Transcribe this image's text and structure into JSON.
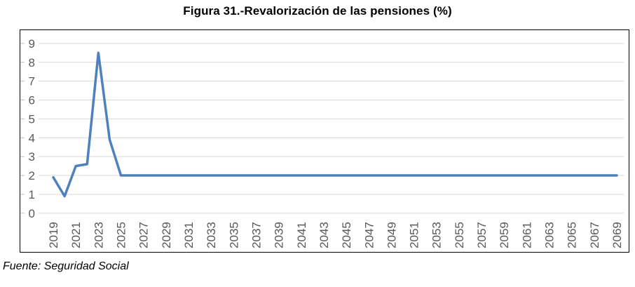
{
  "page": {
    "title": "Figura 31.-Revalorización de las pensiones (%)",
    "source_note": "Fuente: Seguridad Social"
  },
  "chart_data": {
    "type": "line",
    "title": "Figura 31.-Revalorización de las pensiones (%)",
    "source_note": "Fuente: Seguridad Social",
    "x": [
      2019,
      2020,
      2021,
      2022,
      2023,
      2024,
      2025,
      2026,
      2027,
      2028,
      2029,
      2030,
      2031,
      2032,
      2033,
      2034,
      2035,
      2036,
      2037,
      2038,
      2039,
      2040,
      2041,
      2042,
      2043,
      2044,
      2045,
      2046,
      2047,
      2048,
      2049,
      2050,
      2051,
      2052,
      2053,
      2054,
      2055,
      2056,
      2057,
      2058,
      2059,
      2060,
      2061,
      2062,
      2063,
      2064,
      2065,
      2066,
      2067,
      2068,
      2069
    ],
    "series": [
      {
        "name": "Revalorización de las pensiones (%)",
        "values": [
          1.9,
          0.9,
          2.5,
          2.6,
          8.5,
          3.9,
          2,
          2,
          2,
          2,
          2,
          2,
          2,
          2,
          2,
          2,
          2,
          2,
          2,
          2,
          2,
          2,
          2,
          2,
          2,
          2,
          2,
          2,
          2,
          2,
          2,
          2,
          2,
          2,
          2,
          2,
          2,
          2,
          2,
          2,
          2,
          2,
          2,
          2,
          2,
          2,
          2,
          2,
          2,
          2,
          2
        ]
      }
    ],
    "xlabel": "",
    "ylabel": "",
    "ylim": [
      0,
      9
    ],
    "y_ticks": [
      0,
      1,
      2,
      3,
      4,
      5,
      6,
      7,
      8,
      9
    ],
    "x_tick_labels": [
      "2019",
      "2021",
      "2023",
      "2025",
      "2027",
      "2029",
      "2031",
      "2033",
      "2035",
      "2037",
      "2039",
      "2041",
      "2043",
      "2045",
      "2047",
      "2049",
      "2051",
      "2053",
      "2055",
      "2057",
      "2059",
      "2061",
      "2063",
      "2065",
      "2067",
      "2069"
    ],
    "x_tick_step": 2,
    "x_tick_rotation": -90,
    "grid": "horizontal",
    "legend": "none",
    "colors": {
      "line": "#4F81BD",
      "gridline": "#D9D9D9",
      "tick_mark": "#BFBFBF",
      "axis_text": "#595959",
      "frame": "#000000"
    }
  }
}
